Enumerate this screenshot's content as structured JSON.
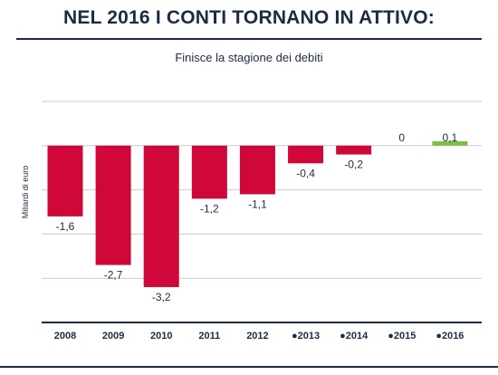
{
  "headline": "NEL 2016 I CONTI TORNANO IN ATTIVO:",
  "subtitle": "Finisce la stagione dei debiti",
  "colors": {
    "negative": "#d0083a",
    "positive": "#7ac143",
    "text": "#1c2b44",
    "grid": "#1c2b44"
  },
  "chart_data": {
    "type": "bar",
    "title": "",
    "ylabel": "Miliardi di euro",
    "xlabel": "",
    "ylim": [
      -4,
      1
    ],
    "grid": true,
    "categories": [
      "2008",
      "2009",
      "2010",
      "2011",
      "2012",
      "●2013",
      "●2014",
      "●2015",
      "●2016"
    ],
    "values": [
      -1.6,
      -2.7,
      -3.2,
      -1.2,
      -1.1,
      -0.4,
      -0.2,
      0,
      0.1
    ],
    "value_labels": [
      "-1,6",
      "-2,7",
      "-3,2",
      "-1,2",
      "-1,1",
      "-0,4",
      "-0,2",
      "0",
      "0,1"
    ]
  }
}
